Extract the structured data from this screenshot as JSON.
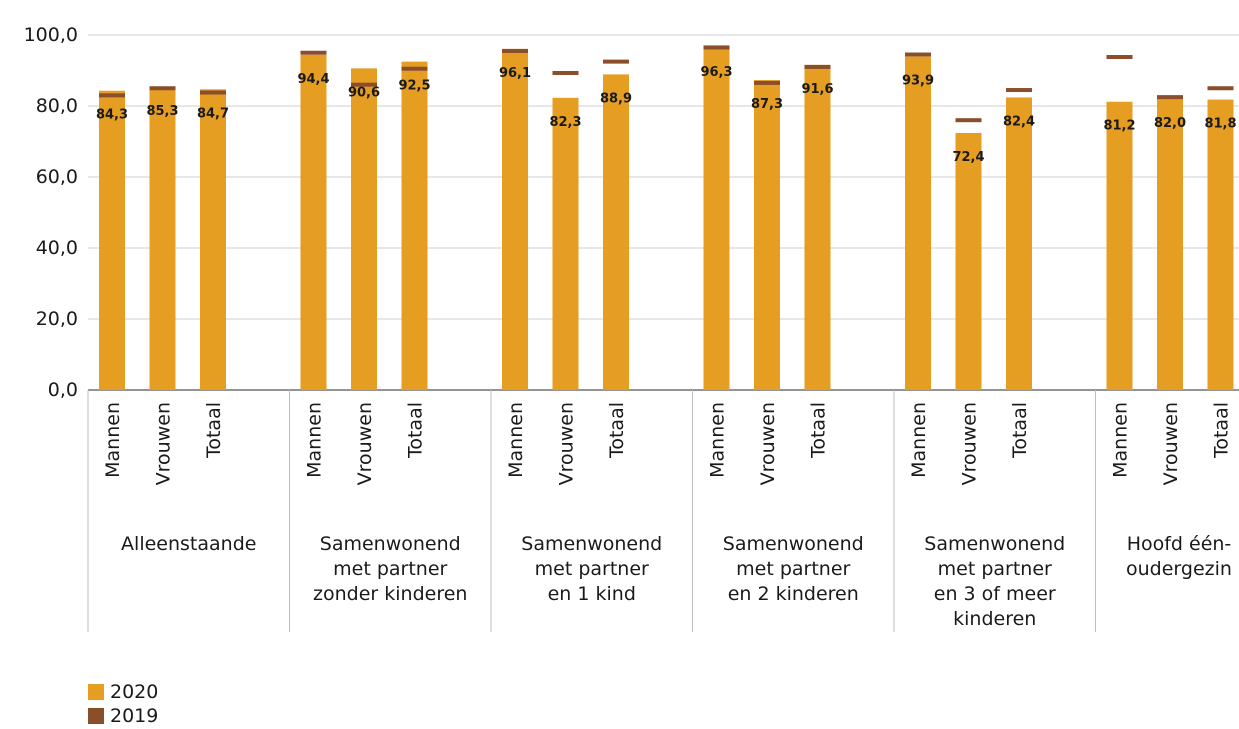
{
  "chart_data": {
    "type": "bar",
    "ylim": [
      0,
      100
    ],
    "yticks": [
      "0,0",
      "20,0",
      "40,0",
      "60,0",
      "80,0",
      "100,0"
    ],
    "subcategories": [
      "Mannen",
      "Vrouwen",
      "Totaal"
    ],
    "groups": [
      {
        "label": [
          "Alleenstaande"
        ],
        "v2020": [
          84.3,
          85.3,
          84.7
        ],
        "v2019": [
          83.0,
          85.0,
          83.8
        ],
        "labels": [
          "84,3",
          "85,3",
          "84,7"
        ]
      },
      {
        "label": [
          "Samenwonend",
          "met partner",
          "zonder kinderen"
        ],
        "v2020": [
          94.4,
          90.6,
          92.5
        ],
        "v2019": [
          95.0,
          86.0,
          90.5
        ],
        "labels": [
          "94,4",
          "90,6",
          "92,5"
        ]
      },
      {
        "label": [
          "Samenwonend",
          "met partner",
          "en 1 kind"
        ],
        "v2020": [
          96.1,
          82.3,
          88.9
        ],
        "v2019": [
          95.5,
          89.3,
          92.5
        ],
        "labels": [
          "96,1",
          "82,3",
          "88,9"
        ]
      },
      {
        "label": [
          "Samenwonend",
          "met partner",
          "en 2 kinderen"
        ],
        "v2020": [
          96.3,
          87.3,
          91.6
        ],
        "v2019": [
          96.5,
          86.5,
          91.0
        ],
        "labels": [
          "96,3",
          "87,3",
          "91,6"
        ]
      },
      {
        "label": [
          "Samenwonend",
          "met partner",
          "en 3 of meer",
          "kinderen"
        ],
        "v2020": [
          93.9,
          72.4,
          82.4
        ],
        "v2019": [
          94.5,
          76.0,
          84.5
        ],
        "labels": [
          "93,9",
          "72,4",
          "82,4"
        ]
      },
      {
        "label": [
          "Hoofd één-",
          "oudergezin"
        ],
        "v2020": [
          81.2,
          82.0,
          81.8
        ],
        "v2019": [
          93.8,
          82.5,
          85.0
        ],
        "labels": [
          "81,2",
          "82,0",
          "81,8"
        ]
      }
    ],
    "series": [
      {
        "name": "2020",
        "color": "#E59E22"
      },
      {
        "name": "2019",
        "color": "#8B4E2B"
      }
    ],
    "legend_position": "bottom-left"
  }
}
